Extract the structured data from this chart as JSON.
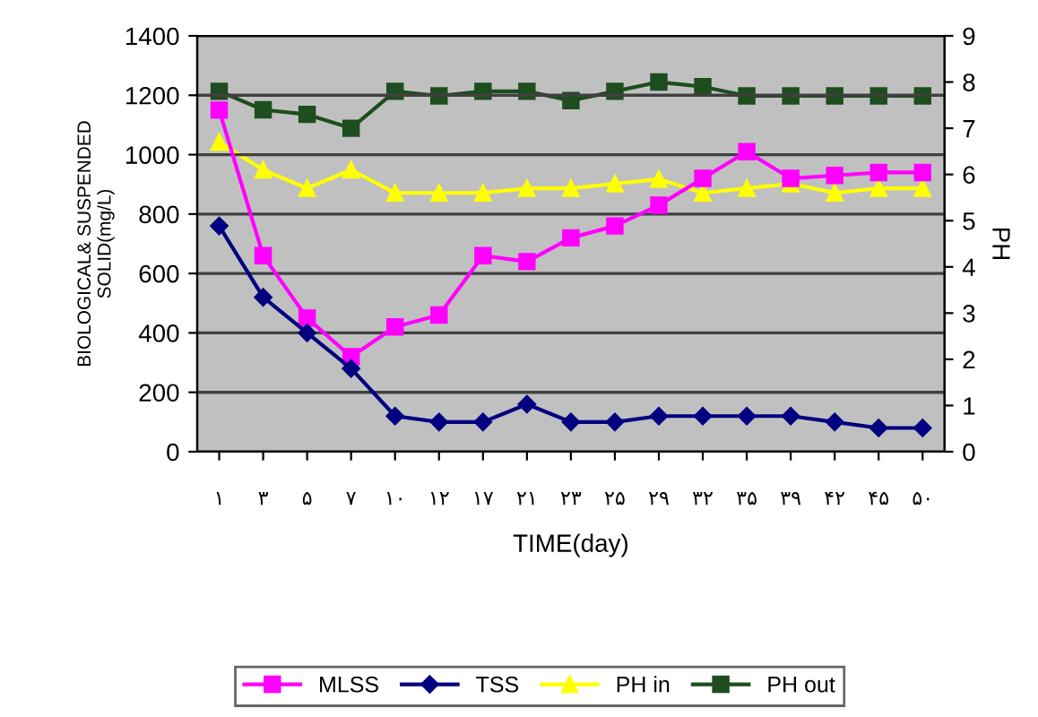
{
  "chart_data": {
    "type": "line",
    "xlabel": "TIME(day)",
    "ylabel": "BIOLOGICAL& SUSPENDED\nSOLID(mg/L)",
    "y2label": "PH",
    "categories": [
      "۱",
      "۳",
      "۵",
      "۷",
      "۱۰",
      "۱۲",
      "۱۷",
      "۲۱",
      "۲۳",
      "۲۵",
      "۲۹",
      "۳۲",
      "۳۵",
      "۳۹",
      "۴۲",
      "۴۵",
      "۵۰"
    ],
    "series": [
      {
        "name": "MLSS",
        "color": "#ff00ff",
        "marker": "square",
        "values": [
          1150,
          660,
          450,
          320,
          420,
          460,
          660,
          640,
          720,
          760,
          830,
          920,
          1010,
          920,
          930,
          940,
          940
        ]
      },
      {
        "name": "TSS",
        "color": "#000080",
        "marker": "diamond",
        "values": [
          760,
          520,
          400,
          280,
          120,
          100,
          100,
          160,
          100,
          100,
          120,
          120,
          120,
          120,
          100,
          80,
          80
        ]
      },
      {
        "name": "PH in",
        "color": "#ffff00",
        "marker": "triangle",
        "axis": "y2",
        "values": [
          6.7,
          6.1,
          5.7,
          6.1,
          5.6,
          5.6,
          5.6,
          5.7,
          5.7,
          5.8,
          5.9,
          5.6,
          5.7,
          5.8,
          5.6,
          5.7,
          5.7
        ]
      },
      {
        "name": "PH out",
        "color": "#1e4d1e",
        "marker": "square",
        "axis": "y2",
        "values": [
          7.8,
          7.4,
          7.3,
          7.0,
          7.8,
          7.7,
          7.8,
          7.8,
          7.6,
          7.8,
          8.0,
          7.9,
          7.7,
          7.7,
          7.7,
          7.7,
          7.7
        ]
      }
    ],
    "ylim": [
      0,
      1400
    ],
    "yticks": [
      0,
      200,
      400,
      600,
      800,
      1000,
      1200,
      1400
    ],
    "y2lim": [
      0,
      9
    ],
    "y2ticks": [
      0,
      1,
      2,
      3,
      4,
      5,
      6,
      7,
      8,
      9
    ],
    "grid": "y",
    "legend": "bottom"
  }
}
